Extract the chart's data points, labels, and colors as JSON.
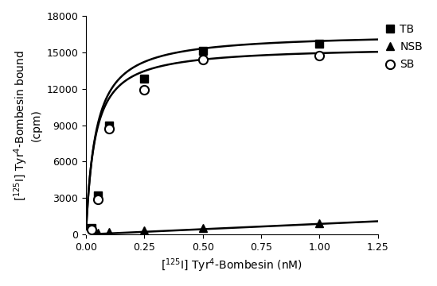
{
  "TB_x": [
    0.0,
    0.01,
    0.025,
    0.05,
    0.1,
    0.25,
    0.5,
    1.0
  ],
  "TB_y": [
    0,
    200,
    500,
    3200,
    9000,
    12800,
    15100,
    15700
  ],
  "NSB_x": [
    0.0,
    0.01,
    0.025,
    0.05,
    0.1,
    0.25,
    0.5,
    1.0
  ],
  "NSB_y": [
    0,
    30,
    60,
    120,
    200,
    350,
    550,
    900
  ],
  "SB_x": [
    0.0,
    0.01,
    0.025,
    0.05,
    0.1,
    0.25,
    0.5,
    1.0
  ],
  "SB_y": [
    0,
    150,
    400,
    2900,
    8700,
    11900,
    14400,
    14700
  ],
  "TB_Bmax": 16600,
  "TB_Kd": 0.042,
  "NSB_slope": 870,
  "SB_Bmax": 15500,
  "SB_Kd": 0.038,
  "xlim": [
    0,
    1.25
  ],
  "ylim": [
    0,
    18000
  ],
  "xticks": [
    0.0,
    0.25,
    0.5,
    0.75,
    1.0,
    1.25
  ],
  "yticks": [
    0,
    3000,
    6000,
    9000,
    12000,
    15000,
    18000
  ],
  "legend_labels": [
    "TB",
    "NSB",
    "SB"
  ],
  "marker_TB": "s",
  "marker_NSB": "^",
  "marker_SB": "o",
  "color": "#000000",
  "figsize": [
    5.49,
    3.6
  ],
  "dpi": 100
}
